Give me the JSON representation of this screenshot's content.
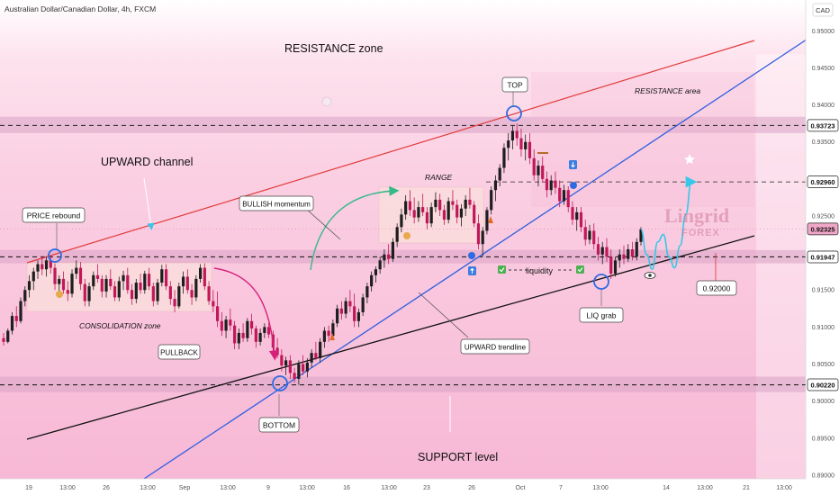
{
  "header": {
    "symbol_title": "Australian Dollar/Canadian Dollar, 4h, FXCM",
    "currency": "CAD"
  },
  "watermark": {
    "brand": "Lingrid",
    "sub": "FOREX"
  },
  "colors": {
    "background_top": "#ffffff",
    "background_pink": "#f9c9df",
    "zone": "#d9a2c4",
    "candle_up": "#1e1e1e",
    "candle_down": "#c0185a",
    "trend_red": "#e23b3b",
    "trend_blue": "#2f5fe0",
    "trend_black": "#111111",
    "marker_blue": "#2f6be0",
    "projection": "#38c7e8",
    "green_arrow": "#36b889",
    "pink_arrow": "#d7207a"
  },
  "chart_data": {
    "type": "candlestick",
    "title": "Australian Dollar/Canadian Dollar, 4h, FXCM",
    "y_axis": {
      "ticks": [
        "0.95000",
        "0.94500",
        "0.94000",
        "0.93500",
        "0.93000",
        "0.92500",
        "0.92000",
        "0.91500",
        "0.91000",
        "0.90500",
        "0.90000",
        "0.89500",
        "0.89000"
      ],
      "range": [
        0.8895,
        0.9515
      ]
    },
    "x_axis": {
      "ticks": [
        "19",
        "13:00",
        "26",
        "13:00",
        "Sep",
        "13:00",
        "9",
        "13:00",
        "16",
        "13:00",
        "23",
        "26",
        "Oct",
        "7",
        "13:00",
        "14",
        "13:00",
        "21",
        "13:00"
      ]
    },
    "price_levels": [
      {
        "label": "0.93723",
        "value": 0.93723,
        "style": "dashed"
      },
      {
        "label": "0.92960",
        "value": 0.9296,
        "style": "dashed-thin"
      },
      {
        "label": "0.92325",
        "value": 0.92325,
        "style": "current",
        "highlight": true
      },
      {
        "label": "0.91947",
        "value": 0.91947,
        "style": "dashed"
      },
      {
        "label": "0.90220",
        "value": 0.9022,
        "style": "dashed"
      }
    ],
    "target_label": "0.92000",
    "zones": [
      {
        "name": "RESISTANCE area band",
        "from": 0.9362,
        "to": 0.9384
      },
      {
        "name": "middle band",
        "from": 0.9186,
        "to": 0.9204
      },
      {
        "name": "SUPPORT band",
        "from": 0.9012,
        "to": 0.9033
      }
    ],
    "trendlines": [
      {
        "name": "upper channel",
        "color": "red",
        "from": [
          "start",
          0.9197
        ],
        "to": [
          "end",
          0.9474
        ]
      },
      {
        "name": "upward trendline",
        "color": "blue",
        "from": [
          "early-Sep",
          0.8918
        ],
        "to": [
          "end",
          0.9496
        ]
      },
      {
        "name": "support trendline",
        "color": "black",
        "from": [
          "Aug-19",
          0.8952
        ],
        "to": [
          "late-Oct",
          0.9225
        ]
      }
    ],
    "candles": [
      [
        0.9085,
        0.9092,
        0.9075,
        0.908
      ],
      [
        0.908,
        0.9098,
        0.9078,
        0.9095
      ],
      [
        0.9095,
        0.912,
        0.909,
        0.9115
      ],
      [
        0.9115,
        0.9128,
        0.91,
        0.9108
      ],
      [
        0.9108,
        0.914,
        0.9105,
        0.9135
      ],
      [
        0.9135,
        0.9155,
        0.9128,
        0.915
      ],
      [
        0.915,
        0.917,
        0.914,
        0.9162
      ],
      [
        0.9162,
        0.918,
        0.915,
        0.9175
      ],
      [
        0.9175,
        0.919,
        0.9165,
        0.9185
      ],
      [
        0.9185,
        0.9196,
        0.917,
        0.9178
      ],
      [
        0.9178,
        0.9195,
        0.9168,
        0.919
      ],
      [
        0.919,
        0.9196,
        0.9172,
        0.918
      ],
      [
        0.918,
        0.9186,
        0.915,
        0.9158
      ],
      [
        0.9158,
        0.917,
        0.914,
        0.9165
      ],
      [
        0.9165,
        0.9175,
        0.9145,
        0.915
      ],
      [
        0.915,
        0.9162,
        0.9135,
        0.9145
      ],
      [
        0.9145,
        0.9178,
        0.914,
        0.9172
      ],
      [
        0.9172,
        0.919,
        0.9165,
        0.918
      ],
      [
        0.918,
        0.9188,
        0.915,
        0.9158
      ],
      [
        0.9158,
        0.9165,
        0.9128,
        0.9135
      ],
      [
        0.9135,
        0.916,
        0.9128,
        0.9155
      ],
      [
        0.9155,
        0.9175,
        0.915,
        0.917
      ],
      [
        0.917,
        0.9185,
        0.916,
        0.9165
      ],
      [
        0.9165,
        0.917,
        0.914,
        0.9148
      ],
      [
        0.9148,
        0.917,
        0.914,
        0.9165
      ],
      [
        0.9165,
        0.9178,
        0.915,
        0.9155
      ],
      [
        0.9155,
        0.9162,
        0.9135,
        0.914
      ],
      [
        0.914,
        0.9168,
        0.9135,
        0.9162
      ],
      [
        0.9162,
        0.9176,
        0.915,
        0.917
      ],
      [
        0.917,
        0.918,
        0.9145,
        0.915
      ],
      [
        0.915,
        0.9158,
        0.913,
        0.9138
      ],
      [
        0.9138,
        0.9165,
        0.9132,
        0.916
      ],
      [
        0.916,
        0.9172,
        0.9145,
        0.915
      ],
      [
        0.915,
        0.9176,
        0.9145,
        0.9172
      ],
      [
        0.9172,
        0.918,
        0.915,
        0.9155
      ],
      [
        0.9155,
        0.916,
        0.9128,
        0.9135
      ],
      [
        0.9135,
        0.9165,
        0.913,
        0.916
      ],
      [
        0.916,
        0.9184,
        0.9155,
        0.9178
      ],
      [
        0.9178,
        0.9185,
        0.915,
        0.9155
      ],
      [
        0.9155,
        0.9162,
        0.913,
        0.9138
      ],
      [
        0.9138,
        0.915,
        0.912,
        0.9128
      ],
      [
        0.9128,
        0.916,
        0.9125,
        0.9155
      ],
      [
        0.9155,
        0.9175,
        0.9145,
        0.9168
      ],
      [
        0.9168,
        0.9178,
        0.9145,
        0.915
      ],
      [
        0.915,
        0.9158,
        0.913,
        0.914
      ],
      [
        0.914,
        0.917,
        0.9135,
        0.9165
      ],
      [
        0.9165,
        0.9185,
        0.916,
        0.918
      ],
      [
        0.918,
        0.9186,
        0.915,
        0.9155
      ],
      [
        0.9155,
        0.9162,
        0.913,
        0.9135
      ],
      [
        0.9135,
        0.915,
        0.912,
        0.9128
      ],
      [
        0.9128,
        0.9148,
        0.91,
        0.9108
      ],
      [
        0.9108,
        0.912,
        0.9088,
        0.9095
      ],
      [
        0.9095,
        0.9115,
        0.9085,
        0.911
      ],
      [
        0.911,
        0.9125,
        0.9095,
        0.9102
      ],
      [
        0.9102,
        0.9108,
        0.907,
        0.9078
      ],
      [
        0.9078,
        0.9098,
        0.907,
        0.9092
      ],
      [
        0.9092,
        0.9105,
        0.908,
        0.9085
      ],
      [
        0.9085,
        0.9112,
        0.908,
        0.9108
      ],
      [
        0.9108,
        0.9118,
        0.909,
        0.9098
      ],
      [
        0.9098,
        0.9102,
        0.9072,
        0.908
      ],
      [
        0.908,
        0.9098,
        0.9075,
        0.9092
      ],
      [
        0.9092,
        0.9105,
        0.9085,
        0.91
      ],
      [
        0.91,
        0.9106,
        0.9085,
        0.909
      ],
      [
        0.909,
        0.9095,
        0.9065,
        0.9072
      ],
      [
        0.9072,
        0.9085,
        0.9058,
        0.9062
      ],
      [
        0.9062,
        0.907,
        0.904,
        0.9048
      ],
      [
        0.9048,
        0.906,
        0.9035,
        0.9055
      ],
      [
        0.9055,
        0.9062,
        0.903,
        0.9038
      ],
      [
        0.9038,
        0.9045,
        0.9025,
        0.903
      ],
      [
        0.903,
        0.9055,
        0.9022,
        0.905
      ],
      [
        0.905,
        0.9062,
        0.9035,
        0.904
      ],
      [
        0.904,
        0.9058,
        0.9032,
        0.9052
      ],
      [
        0.9052,
        0.907,
        0.9045,
        0.9065
      ],
      [
        0.9065,
        0.908,
        0.9055,
        0.9058
      ],
      [
        0.9058,
        0.9085,
        0.9052,
        0.908
      ],
      [
        0.908,
        0.91,
        0.9072,
        0.9095
      ],
      [
        0.9095,
        0.9102,
        0.908,
        0.9088
      ],
      [
        0.9088,
        0.911,
        0.9082,
        0.9105
      ],
      [
        0.9105,
        0.913,
        0.91,
        0.9125
      ],
      [
        0.9125,
        0.9135,
        0.911,
        0.9118
      ],
      [
        0.9118,
        0.914,
        0.9112,
        0.9135
      ],
      [
        0.9135,
        0.915,
        0.912,
        0.9128
      ],
      [
        0.9128,
        0.9145,
        0.91,
        0.9108
      ],
      [
        0.9108,
        0.9125,
        0.91,
        0.912
      ],
      [
        0.912,
        0.9145,
        0.9115,
        0.914
      ],
      [
        0.914,
        0.916,
        0.9132,
        0.9155
      ],
      [
        0.9155,
        0.9175,
        0.9148,
        0.917
      ],
      [
        0.917,
        0.9182,
        0.916,
        0.9178
      ],
      [
        0.9178,
        0.9195,
        0.9172,
        0.919
      ],
      [
        0.919,
        0.9205,
        0.918,
        0.9198
      ],
      [
        0.9198,
        0.9212,
        0.9185,
        0.9192
      ],
      [
        0.9192,
        0.922,
        0.9188,
        0.9215
      ],
      [
        0.9215,
        0.924,
        0.9208,
        0.9235
      ],
      [
        0.9235,
        0.926,
        0.9228,
        0.9252
      ],
      [
        0.9252,
        0.9278,
        0.9245,
        0.927
      ],
      [
        0.927,
        0.9285,
        0.925,
        0.9258
      ],
      [
        0.9258,
        0.9275,
        0.924,
        0.9248
      ],
      [
        0.9248,
        0.927,
        0.9242,
        0.9262
      ],
      [
        0.9262,
        0.928,
        0.925,
        0.9255
      ],
      [
        0.9255,
        0.9262,
        0.9232,
        0.924
      ],
      [
        0.924,
        0.9268,
        0.9235,
        0.9262
      ],
      [
        0.9262,
        0.9282,
        0.9255,
        0.9272
      ],
      [
        0.9272,
        0.928,
        0.925,
        0.9258
      ],
      [
        0.9258,
        0.9265,
        0.9238,
        0.9245
      ],
      [
        0.9245,
        0.9275,
        0.924,
        0.927
      ],
      [
        0.927,
        0.9285,
        0.9258,
        0.9265
      ],
      [
        0.9265,
        0.9272,
        0.924,
        0.9248
      ],
      [
        0.9248,
        0.9266,
        0.9236,
        0.926
      ],
      [
        0.926,
        0.9278,
        0.925,
        0.9272
      ],
      [
        0.9272,
        0.9288,
        0.926,
        0.9265
      ],
      [
        0.9265,
        0.927,
        0.9235,
        0.924
      ],
      [
        0.924,
        0.9252,
        0.9205,
        0.9212
      ],
      [
        0.9212,
        0.9235,
        0.9195,
        0.923
      ],
      [
        0.923,
        0.9262,
        0.9225,
        0.9258
      ],
      [
        0.9258,
        0.929,
        0.9252,
        0.9285
      ],
      [
        0.9285,
        0.9305,
        0.927,
        0.9298
      ],
      [
        0.9298,
        0.932,
        0.929,
        0.9315
      ],
      [
        0.9315,
        0.9348,
        0.9308,
        0.9342
      ],
      [
        0.9342,
        0.9362,
        0.9325,
        0.9352
      ],
      [
        0.9352,
        0.9372,
        0.934,
        0.9365
      ],
      [
        0.9365,
        0.9375,
        0.9345,
        0.9355
      ],
      [
        0.9355,
        0.9368,
        0.933,
        0.934
      ],
      [
        0.934,
        0.936,
        0.9325,
        0.935
      ],
      [
        0.935,
        0.9362,
        0.932,
        0.9328
      ],
      [
        0.9328,
        0.934,
        0.9298,
        0.9305
      ],
      [
        0.9305,
        0.9325,
        0.929,
        0.9318
      ],
      [
        0.9318,
        0.933,
        0.9295,
        0.93
      ],
      [
        0.93,
        0.931,
        0.9275,
        0.9285
      ],
      [
        0.9285,
        0.9305,
        0.9278,
        0.9298
      ],
      [
        0.9298,
        0.931,
        0.928,
        0.9288
      ],
      [
        0.9288,
        0.9298,
        0.9262,
        0.927
      ],
      [
        0.927,
        0.9292,
        0.9265,
        0.9285
      ],
      [
        0.9285,
        0.929,
        0.9255,
        0.9262
      ],
      [
        0.9262,
        0.927,
        0.9238,
        0.9245
      ],
      [
        0.9245,
        0.9262,
        0.923,
        0.9255
      ],
      [
        0.9255,
        0.9262,
        0.9228,
        0.9235
      ],
      [
        0.9235,
        0.9245,
        0.921,
        0.9218
      ],
      [
        0.9218,
        0.9238,
        0.9212,
        0.923
      ],
      [
        0.923,
        0.924,
        0.9205,
        0.9212
      ],
      [
        0.9212,
        0.9222,
        0.919,
        0.9198
      ],
      [
        0.9198,
        0.9215,
        0.9185,
        0.9208
      ],
      [
        0.9208,
        0.922,
        0.9188,
        0.9195
      ],
      [
        0.9195,
        0.9205,
        0.9165,
        0.9172
      ],
      [
        0.9172,
        0.9195,
        0.9168,
        0.919
      ],
      [
        0.919,
        0.9205,
        0.918,
        0.9198
      ],
      [
        0.9198,
        0.921,
        0.9185,
        0.9192
      ],
      [
        0.9192,
        0.9212,
        0.9188,
        0.9205
      ],
      [
        0.9205,
        0.9215,
        0.919,
        0.9195
      ],
      [
        0.9195,
        0.922,
        0.919,
        0.9215
      ],
      [
        0.9215,
        0.9235,
        0.921,
        0.9232
      ]
    ],
    "projection_path": [
      [
        0.9232,
        "now"
      ],
      [
        0.9198
      ],
      [
        0.9178
      ],
      [
        0.9215
      ],
      [
        0.9225
      ],
      [
        0.9195
      ],
      [
        0.918
      ],
      [
        0.921
      ],
      [
        0.9252
      ],
      [
        0.9296
      ]
    ]
  },
  "annotations": {
    "resistance_zone": "RESISTANCE zone",
    "resistance_area": "RESISTANCE area",
    "upward_channel": "UPWARD channel",
    "price_rebound": "PRICE rebound",
    "bullish_momentum": "BULLISH momentum",
    "range": "RANGE",
    "top": "TOP",
    "consolidation_zone": "CONSOLIDATION zone",
    "pullback": "PULLBACK",
    "upward_trendline": "UPWARD trendline",
    "liquidity": "liquidity",
    "liq_grab": "LIQ grab",
    "bottom": "BOTTOM",
    "support_level": "SUPPORT level"
  }
}
